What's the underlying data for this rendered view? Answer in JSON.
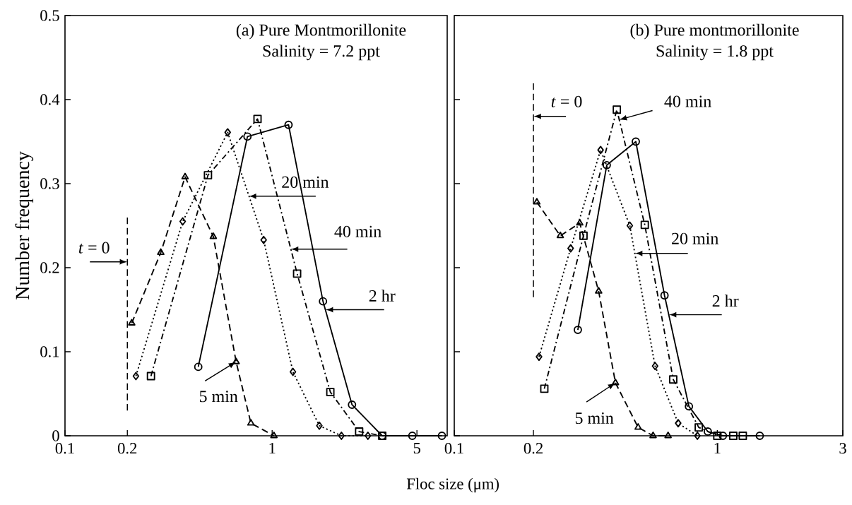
{
  "chart_data": [
    {
      "type": "line",
      "title": "(a) Pure Montmorillonite",
      "subtitle": "Salinity = 7.2 ppt",
      "xlabel": "Floc size (μm)",
      "ylabel": "Number frequency",
      "log": "x",
      "xlim": [
        0.1,
        7
      ],
      "xticks": [
        0.1,
        0.2,
        1,
        5
      ],
      "ylim": [
        0,
        0.5
      ],
      "yticks": [
        0,
        0.1,
        0.2,
        0.3,
        0.4,
        0.5
      ],
      "series": [
        {
          "color": "#000000",
          "marker": "triangle",
          "line_style": "dashed",
          "x": [
            0.21,
            0.29,
            0.38,
            0.52,
            0.67,
            0.79,
            1.02
          ],
          "values": [
            0.134,
            0.218,
            0.308,
            0.237,
            0.088,
            0.015,
            0.0
          ]
        },
        {
          "color": "#000000",
          "marker": "diamond",
          "line_style": "dotted",
          "x": [
            0.22,
            0.37,
            0.61,
            0.91,
            1.26,
            1.69,
            2.16,
            2.9
          ],
          "values": [
            0.071,
            0.255,
            0.361,
            0.233,
            0.076,
            0.012,
            0.0,
            0.0
          ]
        },
        {
          "color": "#000000",
          "marker": "square",
          "line_style": "dashdot",
          "x": [
            0.26,
            0.49,
            0.85,
            1.32,
            1.91,
            2.63,
            3.4
          ],
          "values": [
            0.071,
            0.31,
            0.377,
            0.193,
            0.052,
            0.005,
            0.0
          ]
        },
        {
          "color": "#000000",
          "marker": "circle",
          "line_style": "solid",
          "x": [
            0.44,
            0.76,
            1.2,
            1.76,
            2.43,
            3.4,
            4.75,
            6.6
          ],
          "values": [
            0.082,
            0.356,
            0.37,
            0.16,
            0.037,
            0.0,
            0.0,
            0.0
          ]
        }
      ],
      "ref_lines": [
        {
          "axis": "x",
          "value": 0.2,
          "label": "*t* = 0",
          "line_style": "dashed"
        }
      ],
      "annotations": [
        {
          "text": "20 min",
          "x": 0.77,
          "y": 0.285
        },
        {
          "text": "40 min",
          "x": 1.23,
          "y": 0.222
        },
        {
          "text": "2 hr",
          "x": 1.81,
          "y": 0.15
        },
        {
          "text": "5 min",
          "x": 0.67,
          "y": 0.088
        }
      ]
    },
    {
      "type": "line",
      "title": "(b)  Pure montmorillonite",
      "subtitle": "Salinity = 1.8 ppt",
      "log": "x",
      "tick_labels": "x",
      "xlim": [
        0.1,
        3
      ],
      "xticks": [
        0.1,
        0.2,
        1,
        3
      ],
      "ylim": [
        0,
        0.5
      ],
      "yticks": [
        0,
        0.1,
        0.2,
        0.3,
        0.4,
        0.5
      ],
      "series": [
        {
          "color": "#000000",
          "marker": "triangle",
          "line_style": "dashed",
          "x": [
            0.206,
            0.253,
            0.3,
            0.354,
            0.41,
            0.5,
            0.57,
            0.65
          ],
          "values": [
            0.278,
            0.238,
            0.253,
            0.172,
            0.063,
            0.01,
            0.0,
            0.0
          ]
        },
        {
          "color": "#000000",
          "marker": "diamond",
          "line_style": "dotted",
          "x": [
            0.21,
            0.277,
            0.36,
            0.465,
            0.58,
            0.71,
            0.84
          ],
          "values": [
            0.094,
            0.223,
            0.34,
            0.25,
            0.083,
            0.015,
            0.0
          ]
        },
        {
          "color": "#000000",
          "marker": "square",
          "line_style": "dashdot",
          "x": [
            0.22,
            0.31,
            0.415,
            0.53,
            0.68,
            0.85,
            1.0,
            1.15,
            1.25
          ],
          "values": [
            0.056,
            0.238,
            0.388,
            0.251,
            0.067,
            0.01,
            0.0,
            0.0,
            0.0
          ]
        },
        {
          "color": "#000000",
          "marker": "circle",
          "line_style": "solid",
          "x": [
            0.295,
            0.38,
            0.49,
            0.63,
            0.78,
            0.92,
            1.05,
            1.45
          ],
          "values": [
            0.126,
            0.322,
            0.35,
            0.167,
            0.035,
            0.005,
            0.0,
            0.0
          ]
        }
      ],
      "ref_lines": [
        {
          "axis": "x",
          "value": 0.2,
          "label": "*t* = 0",
          "line_style": "dashed"
        }
      ],
      "annotations": [
        {
          "text": "40 min",
          "x": 0.424,
          "y": 0.376
        },
        {
          "text": "20 min",
          "x": 0.486,
          "y": 0.217
        },
        {
          "text": "2 hr",
          "x": 0.654,
          "y": 0.144
        },
        {
          "text": "5 min",
          "x": 0.41,
          "y": 0.063
        }
      ]
    }
  ]
}
